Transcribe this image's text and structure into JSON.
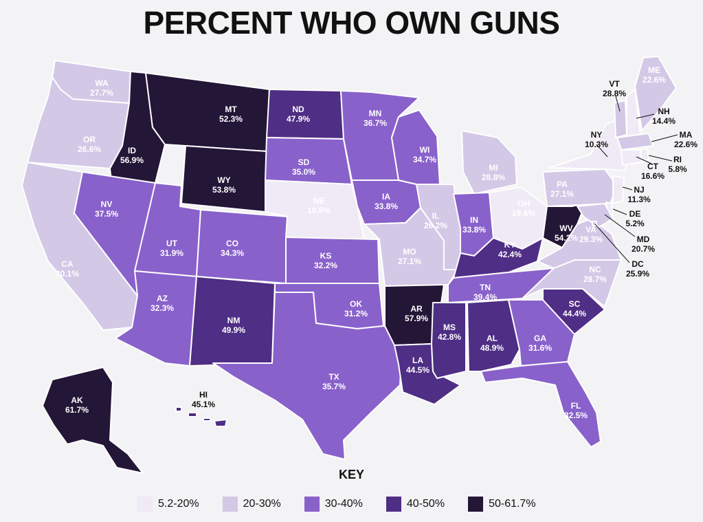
{
  "title": "PERCENT WHO OWN GUNS",
  "key_title": "KEY",
  "legend": [
    {
      "label": "5.2-20%",
      "color": "#efeaf5",
      "min": 5.2,
      "max": 20
    },
    {
      "label": "20-30%",
      "color": "#d4c8e7",
      "min": 20,
      "max": 30
    },
    {
      "label": "30-40%",
      "color": "#8961cb",
      "min": 30,
      "max": 40
    },
    {
      "label": "40-50%",
      "color": "#4f2e85",
      "min": 40,
      "max": 50
    },
    {
      "label": "50-61.7%",
      "color": "#241637",
      "min": 50,
      "max": 61.7
    }
  ],
  "states": [
    {
      "abbr": "WA",
      "value": 27.7,
      "label": "27.7%"
    },
    {
      "abbr": "OR",
      "value": 26.6,
      "label": "26.6%"
    },
    {
      "abbr": "CA",
      "value": 20.1,
      "label": "20.1%"
    },
    {
      "abbr": "ID",
      "value": 56.9,
      "label": "56.9%"
    },
    {
      "abbr": "NV",
      "value": 37.5,
      "label": "37.5%"
    },
    {
      "abbr": "MT",
      "value": 52.3,
      "label": "52.3%"
    },
    {
      "abbr": "WY",
      "value": 53.8,
      "label": "53.8%"
    },
    {
      "abbr": "UT",
      "value": 31.9,
      "label": "31.9%"
    },
    {
      "abbr": "AZ",
      "value": 32.3,
      "label": "32.3%"
    },
    {
      "abbr": "CO",
      "value": 34.3,
      "label": "34.3%"
    },
    {
      "abbr": "NM",
      "value": 49.9,
      "label": "49.9%"
    },
    {
      "abbr": "ND",
      "value": 47.9,
      "label": "47.9%"
    },
    {
      "abbr": "SD",
      "value": 35.0,
      "label": "35.0%"
    },
    {
      "abbr": "NE",
      "value": 19.8,
      "label": "19.8%"
    },
    {
      "abbr": "KS",
      "value": 32.2,
      "label": "32.2%"
    },
    {
      "abbr": "OK",
      "value": 31.2,
      "label": "31.2%"
    },
    {
      "abbr": "TX",
      "value": 35.7,
      "label": "35.7%"
    },
    {
      "abbr": "MN",
      "value": 36.7,
      "label": "36.7%"
    },
    {
      "abbr": "IA",
      "value": 33.8,
      "label": "33.8%"
    },
    {
      "abbr": "MO",
      "value": 27.1,
      "label": "27.1%"
    },
    {
      "abbr": "AR",
      "value": 57.9,
      "label": "57.9%"
    },
    {
      "abbr": "LA",
      "value": 44.5,
      "label": "44.5%"
    },
    {
      "abbr": "WI",
      "value": 34.7,
      "label": "34.7%"
    },
    {
      "abbr": "IL",
      "value": 26.2,
      "label": "26.2%"
    },
    {
      "abbr": "MI",
      "value": 28.8,
      "label": "28.8%"
    },
    {
      "abbr": "IN",
      "value": 33.8,
      "label": "33.8%"
    },
    {
      "abbr": "OH",
      "value": 19.6,
      "label": "19.6%"
    },
    {
      "abbr": "KY",
      "value": 42.4,
      "label": "42.4%"
    },
    {
      "abbr": "TN",
      "value": 39.4,
      "label": "39.4%"
    },
    {
      "abbr": "MS",
      "value": 42.8,
      "label": "42.8%"
    },
    {
      "abbr": "AL",
      "value": 48.9,
      "label": "48.9%"
    },
    {
      "abbr": "GA",
      "value": 31.6,
      "label": "31.6%"
    },
    {
      "abbr": "FL",
      "value": 32.5,
      "label": "32.5%"
    },
    {
      "abbr": "SC",
      "value": 44.4,
      "label": "44.4%"
    },
    {
      "abbr": "NC",
      "value": 28.7,
      "label": "28.7%"
    },
    {
      "abbr": "VA",
      "value": 29.3,
      "label": "29.3%"
    },
    {
      "abbr": "WV",
      "value": 54.2,
      "label": "54.2%"
    },
    {
      "abbr": "PA",
      "value": 27.1,
      "label": "27.1%"
    },
    {
      "abbr": "NY",
      "value": 10.3,
      "label": "10.3%"
    },
    {
      "abbr": "VT",
      "value": 28.8,
      "label": "28.8%"
    },
    {
      "abbr": "NH",
      "value": 14.4,
      "label": "14.4%"
    },
    {
      "abbr": "ME",
      "value": 22.6,
      "label": "22.6%"
    },
    {
      "abbr": "MA",
      "value": 22.6,
      "label": "22.6%"
    },
    {
      "abbr": "RI",
      "value": 5.8,
      "label": "5.8%"
    },
    {
      "abbr": "CT",
      "value": 16.6,
      "label": "16.6%"
    },
    {
      "abbr": "NJ",
      "value": 11.3,
      "label": "11.3%"
    },
    {
      "abbr": "DE",
      "value": 5.2,
      "label": "5.2%"
    },
    {
      "abbr": "MD",
      "value": 20.7,
      "label": "20.7%"
    },
    {
      "abbr": "DC",
      "value": 25.9,
      "label": "25.9%"
    },
    {
      "abbr": "AK",
      "value": 61.7,
      "label": "61.7%"
    },
    {
      "abbr": "HI",
      "value": 45.1,
      "label": "45.1%"
    }
  ]
}
